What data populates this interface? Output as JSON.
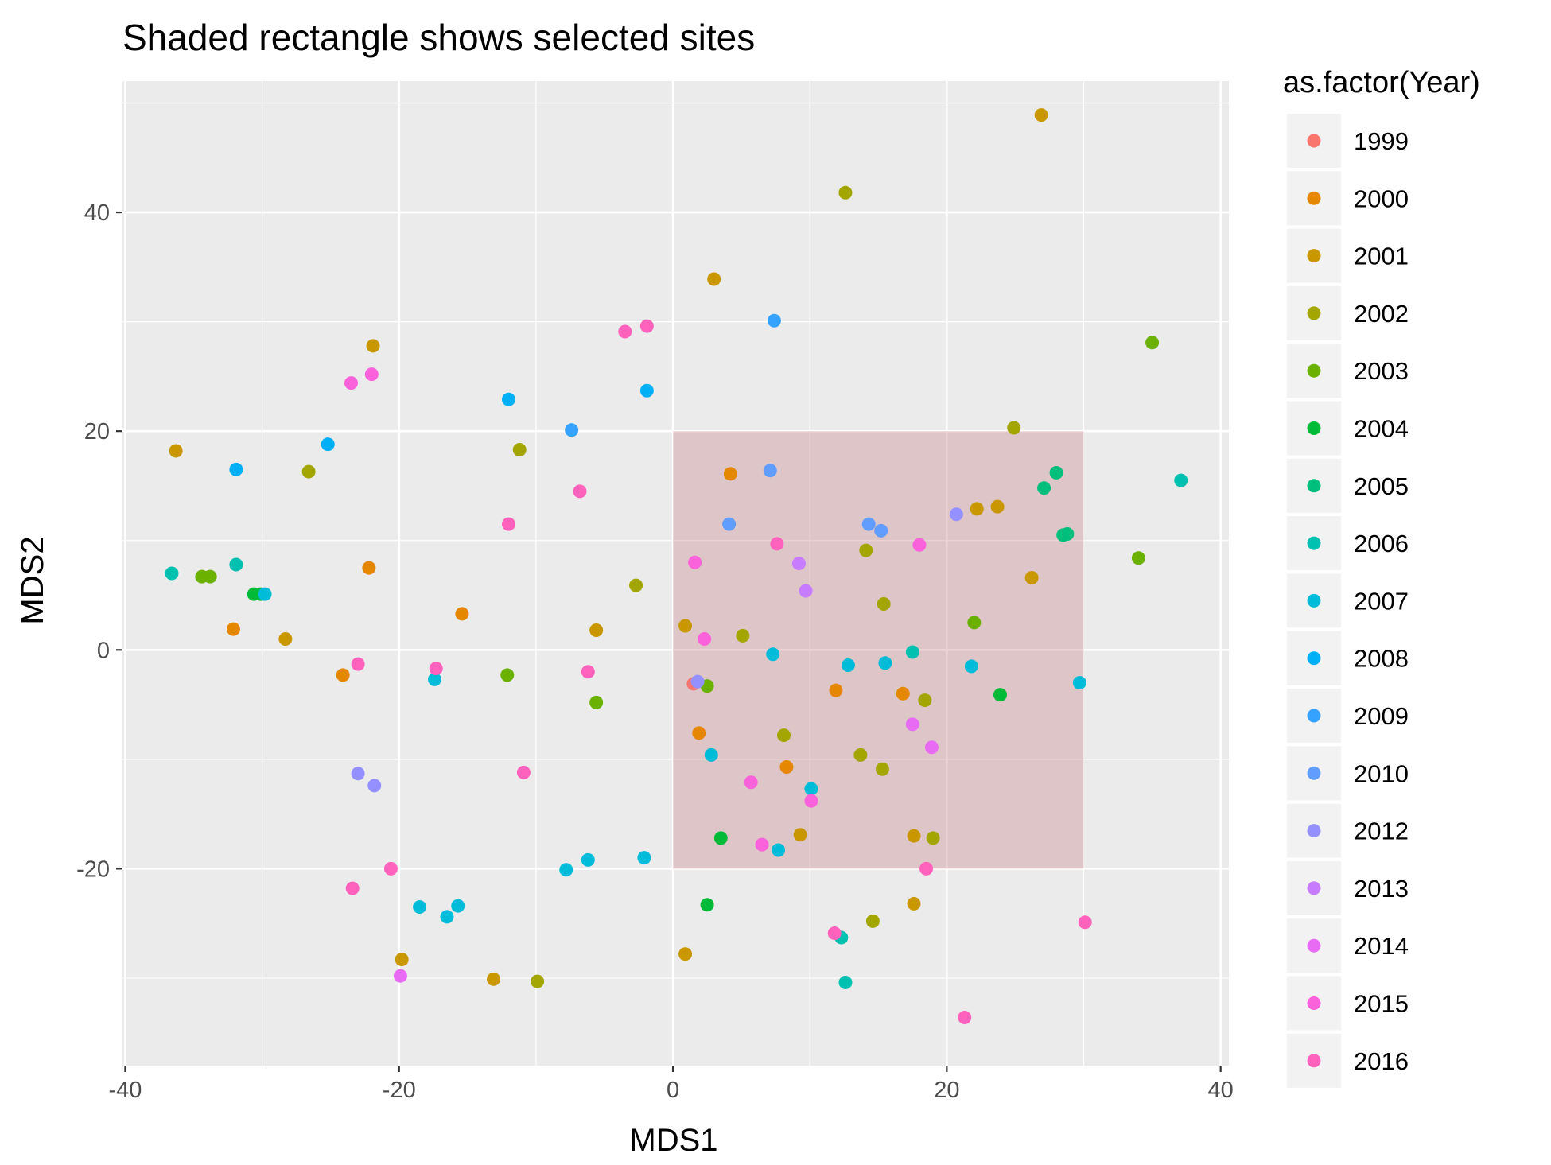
{
  "chart_data": {
    "type": "scatter",
    "title": "Shaded rectangle shows selected sites",
    "xlabel": "MDS1",
    "ylabel": "MDS2",
    "xlim": [
      -40.2,
      40.6
    ],
    "ylim": [
      -38,
      52
    ],
    "xticks": [
      -40,
      -20,
      0,
      20,
      40
    ],
    "yticks": [
      -20,
      0,
      20,
      40
    ],
    "xtick_labels": [
      "-40",
      "-20",
      "0",
      "20",
      "40"
    ],
    "ytick_labels": [
      "-20",
      "0",
      "20",
      "40"
    ],
    "grid": true,
    "panel_background": "#EBEBEB",
    "legend": {
      "title": "as.factor(Year)",
      "position": "right",
      "key_background": "#F2F2F2"
    },
    "shaded_region": {
      "x": [
        0,
        30
      ],
      "y": [
        -20,
        20
      ],
      "color": "#BF6E73",
      "opacity": 0.3
    },
    "series": [
      {
        "name": "1999",
        "color": "#F8766D",
        "points": [
          [
            1.5,
            -3.1
          ]
        ]
      },
      {
        "name": "2000",
        "color": "#E58700",
        "points": [
          [
            -32.1,
            1.9
          ],
          [
            -22.2,
            7.5
          ],
          [
            -24.1,
            -2.3
          ],
          [
            -15.4,
            3.3
          ],
          [
            1.9,
            -7.6
          ],
          [
            4.2,
            16.1
          ],
          [
            8.3,
            -10.7
          ],
          [
            11.9,
            -3.7
          ],
          [
            16.8,
            -4.0
          ]
        ]
      },
      {
        "name": "2001",
        "color": "#C99800",
        "points": [
          [
            -36.3,
            18.2
          ],
          [
            -28.3,
            1.0
          ],
          [
            -21.9,
            27.8
          ],
          [
            -5.6,
            1.8
          ],
          [
            0.9,
            2.2
          ],
          [
            3.0,
            33.9
          ],
          [
            9.3,
            -16.9
          ],
          [
            17.6,
            -17.0
          ],
          [
            22.2,
            12.9
          ],
          [
            23.7,
            13.1
          ],
          [
            26.2,
            6.6
          ],
          [
            26.9,
            48.9
          ],
          [
            17.6,
            -23.2
          ],
          [
            -19.8,
            -28.3
          ],
          [
            -13.1,
            -30.1
          ],
          [
            0.9,
            -27.8
          ]
        ]
      },
      {
        "name": "2002",
        "color": "#A3A500",
        "points": [
          [
            -26.6,
            16.3
          ],
          [
            -11.2,
            18.3
          ],
          [
            -2.7,
            5.9
          ],
          [
            5.1,
            1.3
          ],
          [
            8.1,
            -7.8
          ],
          [
            12.6,
            41.8
          ],
          [
            13.7,
            -9.6
          ],
          [
            14.1,
            9.1
          ],
          [
            15.3,
            -10.9
          ],
          [
            15.4,
            4.2
          ],
          [
            18.4,
            -4.6
          ],
          [
            19.0,
            -17.2
          ],
          [
            24.9,
            20.3
          ],
          [
            -9.9,
            -30.3
          ],
          [
            14.6,
            -24.8
          ]
        ]
      },
      {
        "name": "2003",
        "color": "#6BB100",
        "points": [
          [
            -34.4,
            6.7
          ],
          [
            -33.8,
            6.7
          ],
          [
            -12.1,
            -2.3
          ],
          [
            -5.6,
            -4.8
          ],
          [
            2.5,
            -3.3
          ],
          [
            22.0,
            2.5
          ],
          [
            35.0,
            28.1
          ],
          [
            34.0,
            8.4
          ]
        ]
      },
      {
        "name": "2004",
        "color": "#00BA38",
        "points": [
          [
            -30.6,
            5.1
          ],
          [
            -30.1,
            5.1
          ],
          [
            3.5,
            -17.2
          ],
          [
            2.5,
            -23.3
          ],
          [
            23.9,
            -4.1
          ]
        ]
      },
      {
        "name": "2005",
        "color": "#00BF7D",
        "points": [
          [
            27.1,
            14.8
          ],
          [
            28.0,
            16.2
          ],
          [
            28.5,
            10.5
          ],
          [
            28.8,
            10.6
          ]
        ]
      },
      {
        "name": "2006",
        "color": "#00C0AF",
        "points": [
          [
            -36.6,
            7.0
          ],
          [
            -31.9,
            7.8
          ],
          [
            17.5,
            -0.2
          ],
          [
            37.1,
            15.5
          ],
          [
            12.3,
            -26.3
          ],
          [
            12.6,
            -30.4
          ]
        ]
      },
      {
        "name": "2007",
        "color": "#00BCD8",
        "points": [
          [
            -29.8,
            5.1
          ],
          [
            -17.4,
            -2.7
          ],
          [
            -18.5,
            -23.5
          ],
          [
            -16.5,
            -24.4
          ],
          [
            -15.7,
            -23.4
          ],
          [
            -7.8,
            -20.1
          ],
          [
            -6.2,
            -19.2
          ],
          [
            -2.1,
            -19.0
          ],
          [
            2.8,
            -9.6
          ],
          [
            7.3,
            -0.4
          ],
          [
            12.8,
            -1.4
          ],
          [
            15.5,
            -1.2
          ],
          [
            21.8,
            -1.5
          ],
          [
            29.7,
            -3.0
          ],
          [
            10.1,
            -12.7
          ],
          [
            7.7,
            -18.3
          ]
        ]
      },
      {
        "name": "2008",
        "color": "#00B0F6",
        "points": [
          [
            -31.9,
            16.5
          ],
          [
            -25.2,
            18.8
          ],
          [
            -12.0,
            22.9
          ],
          [
            -1.9,
            23.7
          ]
        ]
      },
      {
        "name": "2009",
        "color": "#35A2FF",
        "points": [
          [
            -7.4,
            20.1
          ],
          [
            7.4,
            30.1
          ]
        ]
      },
      {
        "name": "2010",
        "color": "#619CFF",
        "points": [
          [
            4.1,
            11.5
          ],
          [
            7.1,
            16.4
          ],
          [
            14.3,
            11.5
          ],
          [
            15.2,
            10.9
          ]
        ]
      },
      {
        "name": "2012",
        "color": "#9590FF",
        "points": [
          [
            -23.0,
            -11.3
          ],
          [
            -21.8,
            -12.4
          ],
          [
            1.8,
            -2.9
          ],
          [
            20.7,
            12.4
          ]
        ]
      },
      {
        "name": "2013",
        "color": "#C77CFF",
        "points": [
          [
            9.2,
            7.9
          ],
          [
            9.7,
            5.4
          ]
        ]
      },
      {
        "name": "2014",
        "color": "#E76BF3",
        "points": [
          [
            -19.9,
            -29.8
          ],
          [
            17.5,
            -6.8
          ],
          [
            18.9,
            -8.9
          ]
        ]
      },
      {
        "name": "2015",
        "color": "#FA62DB",
        "points": [
          [
            -23.5,
            24.4
          ],
          [
            -22.0,
            25.2
          ],
          [
            5.7,
            -12.1
          ],
          [
            6.5,
            -17.8
          ],
          [
            10.1,
            -13.8
          ],
          [
            1.6,
            8.0
          ],
          [
            2.3,
            1.0
          ],
          [
            18.0,
            9.6
          ]
        ]
      },
      {
        "name": "2016",
        "color": "#FF62BC",
        "points": [
          [
            -3.5,
            29.1
          ],
          [
            -1.9,
            29.6
          ],
          [
            -6.8,
            14.5
          ],
          [
            -12.0,
            11.5
          ],
          [
            -23.0,
            -1.3
          ],
          [
            -17.3,
            -1.7
          ],
          [
            -6.2,
            -2.0
          ],
          [
            -10.9,
            -11.2
          ],
          [
            -20.6,
            -20.0
          ],
          [
            -23.4,
            -21.8
          ],
          [
            7.6,
            9.7
          ],
          [
            18.5,
            -20.0
          ],
          [
            21.3,
            -33.6
          ],
          [
            30.1,
            -24.9
          ],
          [
            11.8,
            -25.9
          ]
        ]
      }
    ]
  }
}
